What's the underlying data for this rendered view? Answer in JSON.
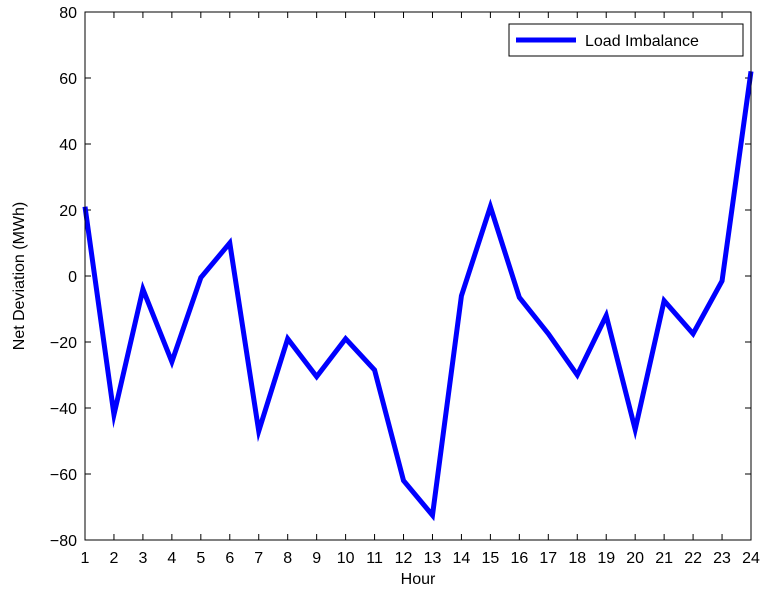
{
  "chart_data": {
    "type": "line",
    "title": "",
    "xlabel": "Hour",
    "ylabel": "Net Deviation (MWh)",
    "xlim": [
      1,
      24
    ],
    "ylim": [
      -80,
      80
    ],
    "x_ticks": [
      1,
      2,
      3,
      4,
      5,
      6,
      7,
      8,
      9,
      10,
      11,
      12,
      13,
      14,
      15,
      16,
      17,
      18,
      19,
      20,
      21,
      22,
      23,
      24
    ],
    "y_ticks": [
      80,
      60,
      40,
      20,
      0,
      -20,
      -40,
      -60,
      -80
    ],
    "grid": false,
    "legend_position": "top-right",
    "series": [
      {
        "name": "Load Imbalance",
        "color": "#0000ff",
        "x": [
          1,
          2,
          3,
          4,
          5,
          6,
          7,
          8,
          9,
          10,
          11,
          12,
          13,
          14,
          15,
          16,
          17,
          18,
          19,
          20,
          21,
          22,
          23,
          24
        ],
        "values": [
          21,
          -42,
          -4,
          -26,
          -0.5,
          10,
          -47,
          -19,
          -30.5,
          -19,
          -28.5,
          -62,
          -72.5,
          -6,
          21,
          -6.5,
          -17.5,
          -30,
          -12,
          -46.5,
          -7.5,
          -17.5,
          -1.5,
          62
        ]
      }
    ]
  }
}
